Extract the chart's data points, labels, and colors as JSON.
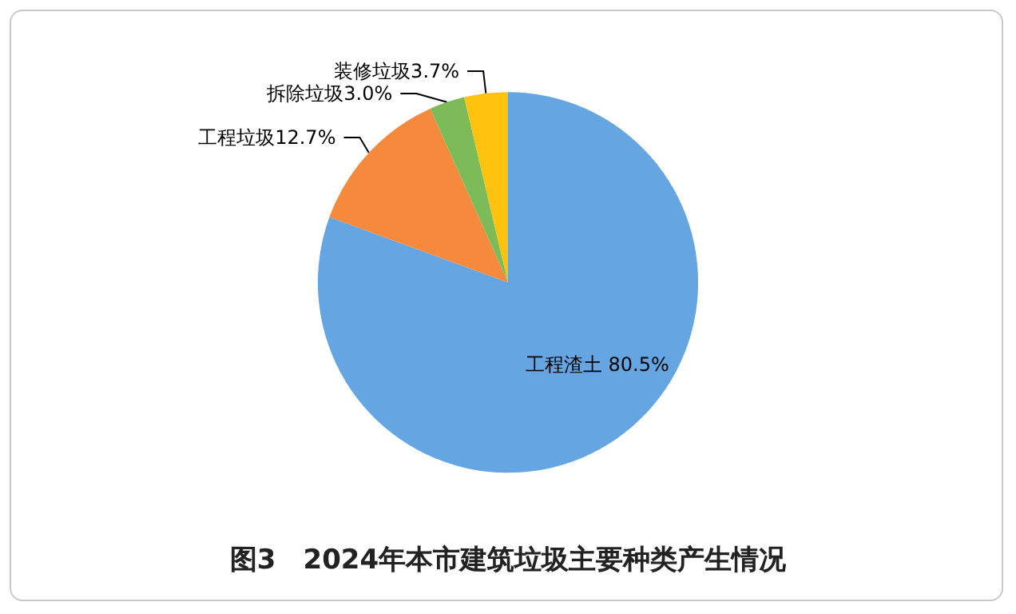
{
  "chart_data": {
    "type": "pie",
    "title": "图3　2024年本市建筑垃圾主要种类产生情况",
    "categories": [
      "工程渣土",
      "工程垃圾",
      "拆除垃圾",
      "装修垃圾"
    ],
    "values": [
      80.5,
      12.7,
      3.0,
      3.7
    ],
    "colors": [
      "#65a6e2",
      "#f58a3c",
      "#7dba58",
      "#ffc20e"
    ],
    "value_labels": [
      "80.5%",
      "12.7%",
      "3.0%",
      "3.7%"
    ],
    "legend": false
  }
}
